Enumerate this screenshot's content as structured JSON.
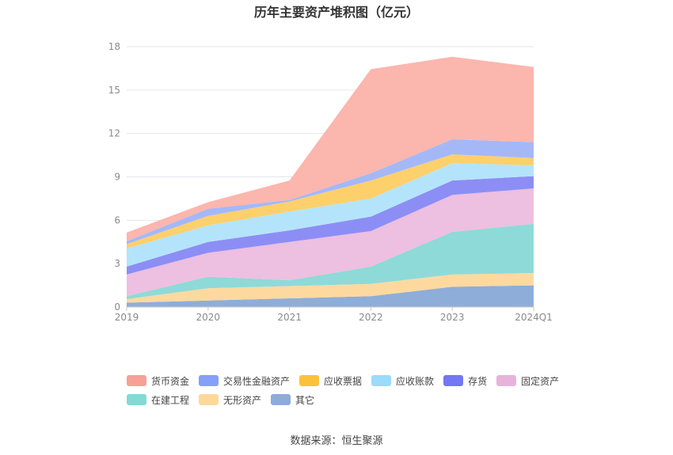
{
  "title": "历年主要资产堆积图（亿元）",
  "source": "数据来源：恒生聚源",
  "chart_data": {
    "type": "area",
    "stacked": true,
    "categories": [
      "2019",
      "2020",
      "2021",
      "2022",
      "2023",
      "2024Q1"
    ],
    "ylim": [
      0,
      18
    ],
    "yticks": [
      0,
      3,
      6,
      9,
      12,
      15,
      18
    ],
    "grid": true,
    "legend_position": "bottom",
    "series": [
      {
        "name": "其它",
        "color": "#8fadd9",
        "values": [
          0.3,
          0.45,
          0.6,
          0.75,
          1.4,
          1.5
        ]
      },
      {
        "name": "无形资产",
        "color": "#fdd9a0",
        "values": [
          0.25,
          0.85,
          0.85,
          0.85,
          0.85,
          0.85
        ]
      },
      {
        "name": "在建工程",
        "color": "#8edad8",
        "values": [
          0.2,
          0.8,
          0.4,
          1.2,
          2.95,
          3.4
        ]
      },
      {
        "name": "固定资产",
        "color": "#edbfe0",
        "values": [
          1.5,
          1.65,
          2.65,
          2.45,
          2.55,
          2.45
        ]
      },
      {
        "name": "存货",
        "color": "#8c8ef5",
        "values": [
          0.55,
          0.75,
          0.8,
          1.0,
          1.0,
          0.85
        ]
      },
      {
        "name": "应收账款",
        "color": "#b4e4fb",
        "values": [
          1.25,
          1.15,
          1.3,
          1.25,
          1.2,
          0.75
        ]
      },
      {
        "name": "应收票据",
        "color": "#fdd06c",
        "values": [
          0.3,
          0.65,
          0.7,
          1.25,
          0.6,
          0.5
        ]
      },
      {
        "name": "交易性金融资产",
        "color": "#a4b8f8",
        "values": [
          0.2,
          0.5,
          0.1,
          0.5,
          1.05,
          1.1
        ]
      },
      {
        "name": "货币资金",
        "color": "#fbb6ae",
        "values": [
          0.6,
          0.45,
          1.35,
          7.2,
          5.7,
          5.2
        ]
      }
    ]
  },
  "legend": {
    "rows": [
      [
        {
          "label": "货币资金",
          "color": "#f7a096"
        },
        {
          "label": "交易性金融资产",
          "color": "#869ff8"
        },
        {
          "label": "应收票据",
          "color": "#fcc13a"
        },
        {
          "label": "应收账款",
          "color": "#9bdbfb"
        },
        {
          "label": "存货",
          "color": "#7476f2"
        },
        {
          "label": "固定资产",
          "color": "#e7b3db"
        }
      ],
      [
        {
          "label": "在建工程",
          "color": "#84d9d5"
        },
        {
          "label": "无形资产",
          "color": "#fdd89a"
        },
        {
          "label": "其它",
          "color": "#8eabd9"
        }
      ]
    ]
  }
}
